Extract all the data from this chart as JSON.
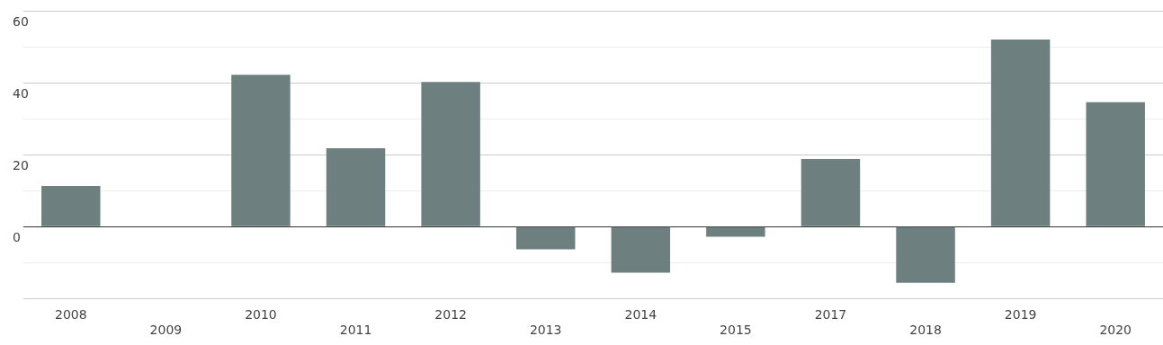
{
  "chart_data": {
    "type": "bar",
    "categories": [
      "2008",
      "2009",
      "2010",
      "2011",
      "2012",
      "2013",
      "2014",
      "2015",
      "2017",
      "2018",
      "2019",
      "2020"
    ],
    "values": [
      11.3,
      0,
      42.2,
      21.8,
      40.2,
      -6.3,
      -12.8,
      -2.8,
      18.8,
      -15.6,
      52,
      34.6
    ],
    "color": "#6d7f7e",
    "ylim": [
      -20,
      60
    ],
    "yticks": [
      {
        "value": -20,
        "label": null
      },
      {
        "value": -10,
        "label": null
      },
      0,
      {
        "value": 10,
        "label": null
      },
      20,
      {
        "value": 30,
        "label": null
      },
      40,
      {
        "value": 50,
        "label": null
      },
      60
    ],
    "grid": "y",
    "legend": false
  }
}
